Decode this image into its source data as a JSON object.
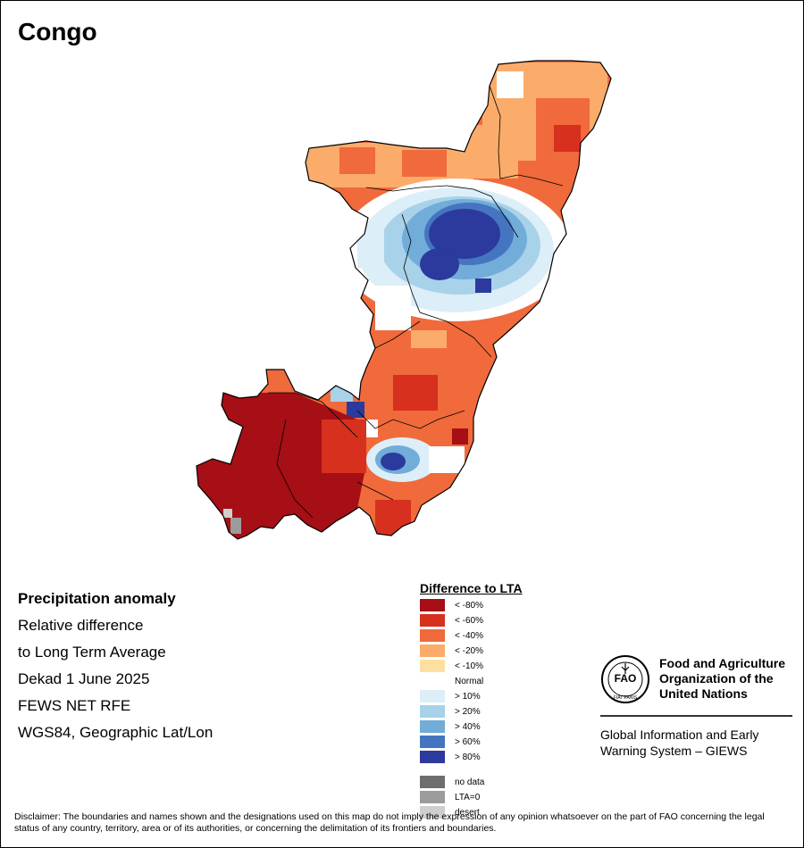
{
  "title": "Congo",
  "info_lines": [
    "Precipitation anomaly",
    "Relative difference",
    "to Long Term Average",
    "Dekad 1 June 2025",
    "FEWS NET RFE",
    "WGS84, Geographic Lat/Lon"
  ],
  "legend": {
    "title": "Difference to LTA",
    "items": [
      {
        "label": "< -80%",
        "color": "#a50f15"
      },
      {
        "label": "< -60%",
        "color": "#d7301f"
      },
      {
        "label": "< -40%",
        "color": "#f06a3c"
      },
      {
        "label": "< -20%",
        "color": "#fbac6a"
      },
      {
        "label": "< -10%",
        "color": "#fde0a0"
      },
      {
        "label": "Normal",
        "color": "#ffffff"
      },
      {
        "label": "> 10%",
        "color": "#dceef7"
      },
      {
        "label": "> 20%",
        "color": "#a8d2ea"
      },
      {
        "label": "> 40%",
        "color": "#72acd8"
      },
      {
        "label": "> 60%",
        "color": "#4575c0"
      },
      {
        "label": "> 80%",
        "color": "#2b3a9c"
      }
    ],
    "extra_items": [
      {
        "label": "no data",
        "color": "#6e6e6e"
      },
      {
        "label": "LTA=0",
        "color": "#9c9c9c"
      },
      {
        "label": "desert",
        "color": "#cfcfcf"
      }
    ]
  },
  "fao": {
    "name_lines": [
      "Food and Agriculture",
      "Organization of the",
      "United Nations"
    ],
    "logo_text": "FAO",
    "logo_motto": "FIAT PANIS",
    "giews_lines": [
      "Global Information and Early",
      "Warning System – GIEWS"
    ]
  },
  "disclaimer": "Disclaimer: The boundaries and names shown and the designations used on this map do not imply the expression of any opinion whatsoever on the part of FAO concerning the legal status of any country, territory, area or of its authorities, or concerning the delimitation of its frontiers and boundaries."
}
